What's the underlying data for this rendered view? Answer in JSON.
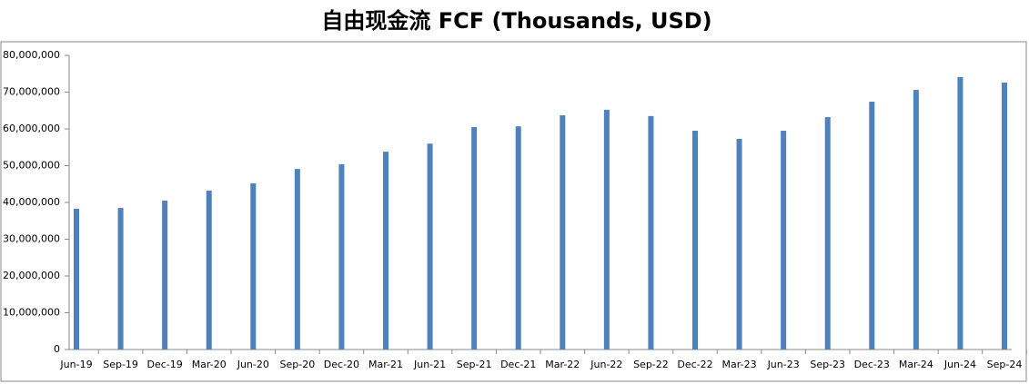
{
  "chart_data": {
    "type": "bar",
    "title": "自由现金流 FCF (Thousands, USD)",
    "categories": [
      "Jun-19",
      "Sep-19",
      "Dec-19",
      "Mar-20",
      "Jun-20",
      "Sep-20",
      "Dec-20",
      "Mar-21",
      "Jun-21",
      "Sep-21",
      "Dec-21",
      "Mar-22",
      "Jun-22",
      "Sep-22",
      "Dec-22",
      "Mar-23",
      "Jun-23",
      "Sep-23",
      "Dec-23",
      "Mar-24",
      "Jun-24",
      "Sep-24"
    ],
    "values": [
      38300000,
      38500000,
      40500000,
      43200000,
      45200000,
      49100000,
      50400000,
      53800000,
      56000000,
      60500000,
      60700000,
      63700000,
      65200000,
      63500000,
      59500000,
      57300000,
      59500000,
      63200000,
      67400000,
      70600000,
      74100000,
      72600000
    ],
    "color": "#4f81bd",
    "ylim": [
      0,
      80000000
    ],
    "yticks": [
      0,
      {
        "value": 10000000,
        "label": "10,000,000"
      },
      {
        "value": 20000000,
        "label": "20,000,000"
      },
      {
        "value": 30000000,
        "label": "30,000,000"
      },
      {
        "value": 40000000,
        "label": "40,000,000"
      },
      {
        "value": 50000000,
        "label": "50,000,000"
      },
      {
        "value": 60000000,
        "label": "60,000,000"
      },
      {
        "value": 70000000,
        "label": "70,000,000"
      },
      {
        "value": 80000000,
        "label": "80,000,000"
      }
    ],
    "grid": false
  }
}
